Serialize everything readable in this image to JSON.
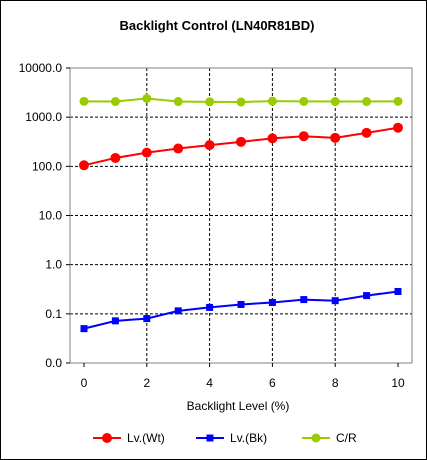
{
  "chart_data": {
    "type": "line",
    "title": "Backlight Control (LN40R81BD)",
    "xlabel": "Backlight Level (%)",
    "ylabel": "",
    "xlim": [
      0,
      10
    ],
    "ylim": [
      0,
      10000
    ],
    "yscale": "log",
    "grid": true,
    "legend_position": "bottom",
    "x_ticks": [
      "0",
      "2",
      "4",
      "6",
      "8",
      "10"
    ],
    "y_ticks": [
      "0.0",
      "0.1",
      "1.0",
      "10.0",
      "100.0",
      "1000.0",
      "10000.0"
    ],
    "x": [
      0,
      1,
      2,
      3,
      4,
      5,
      6,
      7,
      8,
      9,
      10
    ],
    "series": [
      {
        "name": "Lv.(Wt)",
        "color": "#ff0000",
        "marker": "circle",
        "values": [
          105,
          148,
          190,
          230,
          270,
          315,
          370,
          410,
          380,
          480,
          610
        ]
      },
      {
        "name": "Lv.(Bk)",
        "color": "#0000ff",
        "marker": "square",
        "values": [
          0.05,
          0.072,
          0.08,
          0.115,
          0.135,
          0.155,
          0.17,
          0.195,
          0.185,
          0.235,
          0.285
        ]
      },
      {
        "name": "C/R",
        "color": "#99cc00",
        "marker": "circle",
        "values": [
          2100,
          2080,
          2400,
          2080,
          2050,
          2040,
          2120,
          2090,
          2080,
          2080,
          2100
        ]
      }
    ]
  }
}
